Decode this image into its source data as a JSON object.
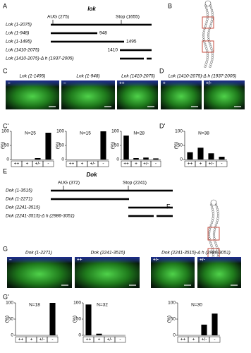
{
  "panel_labels": [
    "A",
    "B",
    "C",
    "D",
    "C'",
    "D'",
    "E",
    "F",
    "G",
    "G'"
  ],
  "lok": {
    "title": "lok",
    "aug": "AUG (275)",
    "stop": "Stop (1655)",
    "rows": [
      {
        "label": "Lok (1-2075)"
      },
      {
        "label": "Lok (1-948)",
        "end_label": "948"
      },
      {
        "label": "Lok (1-1495)",
        "end_label": "1495"
      },
      {
        "label": "Lok (1410-2075)",
        "start_label": "1410"
      },
      {
        "label": "Lok (1410-2075)-Δ h (1937-2005)"
      }
    ]
  },
  "dok": {
    "title": "Dok",
    "aug": "AUG (372)",
    "stop": "Stop (2241)",
    "rows": [
      {
        "label": "Dok (1-3515)"
      },
      {
        "label": "Dok (1-2271)"
      },
      {
        "label": "Dok (2241-3515)"
      },
      {
        "label": "Dok (2241-3515)-Δ h (2986-3051)"
      }
    ]
  },
  "images": [
    {
      "title": "Lok (1-1495)",
      "tags": [
        "–"
      ]
    },
    {
      "title": "Lok (1-948)",
      "tags": [
        "–"
      ]
    },
    {
      "title": "Lok (1410-2075)",
      "tags": [
        "++"
      ]
    },
    {
      "title": "Lok (1410-2075)-Δ h (1937-2005)",
      "tags": [
        "+",
        "+/-"
      ]
    },
    {
      "title": "Dok (1-2271)",
      "tags": [
        "–"
      ]
    },
    {
      "title": "Dok (2241-3515)",
      "tags": [
        "++"
      ]
    },
    {
      "title": "Dok (2241-3515)-Δ h (2986-3051)",
      "tags": [
        "+/-",
        "+/-"
      ]
    }
  ],
  "chart_data": [
    {
      "type": "bar",
      "annotation": "N=25",
      "ylabel": "(%)",
      "categories": [
        "++",
        "+",
        "+/-",
        "-"
      ],
      "values": [
        0,
        0,
        5,
        95
      ],
      "ylim": [
        0,
        100
      ],
      "yticks": [
        0,
        50,
        100
      ],
      "color": "#000000"
    },
    {
      "type": "bar",
      "annotation": "N=15",
      "ylabel": "(%)",
      "categories": [
        "++",
        "+",
        "+/-",
        "-"
      ],
      "values": [
        0,
        0,
        0,
        100
      ],
      "ylim": [
        0,
        100
      ],
      "yticks": [
        0,
        50,
        100
      ],
      "color": "#000000"
    },
    {
      "type": "bar",
      "annotation": "N=28",
      "ylabel": "(%)",
      "categories": [
        "++",
        "+",
        "+/-",
        "-"
      ],
      "values": [
        85,
        5,
        7,
        4
      ],
      "ylim": [
        0,
        100
      ],
      "yticks": [
        0,
        50,
        100
      ],
      "color": "#000000"
    },
    {
      "type": "bar",
      "annotation": "N=38",
      "ylabel": "(%)",
      "categories": [
        "++",
        "+",
        "+/-",
        "-"
      ],
      "values": [
        26,
        42,
        22,
        10
      ],
      "ylim": [
        0,
        100
      ],
      "yticks": [
        0,
        50,
        100
      ],
      "color": "#000000"
    },
    {
      "type": "bar",
      "annotation": "N=18",
      "ylabel": "(%)",
      "categories": [
        "++",
        "+",
        "+/-",
        "-"
      ],
      "values": [
        0,
        0,
        0,
        100
      ],
      "ylim": [
        0,
        100
      ],
      "yticks": [
        0,
        50,
        100
      ],
      "color": "#000000"
    },
    {
      "type": "bar",
      "annotation": "N=32",
      "ylabel": "(%)",
      "categories": [
        "++",
        "+",
        "+/-",
        "-"
      ],
      "values": [
        95,
        5,
        0,
        0
      ],
      "ylim": [
        0,
        100
      ],
      "yticks": [
        0,
        50,
        100
      ],
      "color": "#000000"
    },
    {
      "type": "bar",
      "annotation": "N=30",
      "ylabel": "(%)",
      "categories": [
        "++",
        "+",
        "+/-",
        "-"
      ],
      "values": [
        0,
        0,
        33,
        67
      ],
      "ylim": [
        0,
        100
      ],
      "yticks": [
        0,
        50,
        100
      ],
      "color": "#000000"
    }
  ]
}
